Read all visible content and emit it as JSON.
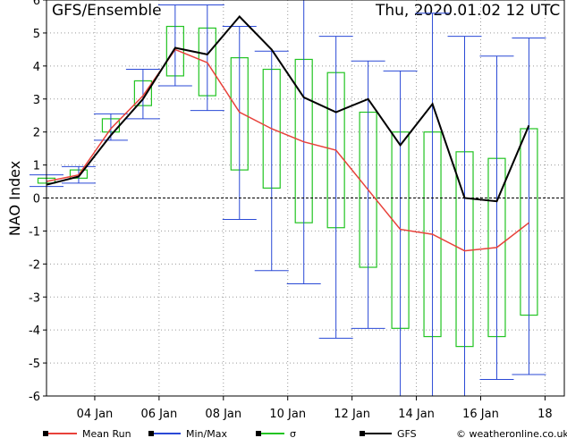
{
  "header": {
    "title": "GFS/Ensemble",
    "timestamp": "Thu, 2020.01.02   12 UTC"
  },
  "legend": {
    "items": [
      {
        "label": "Mean Run",
        "color": "#e8413a"
      },
      {
        "label": "Min/Max",
        "color": "#2a49d6"
      },
      {
        "label": "σ",
        "color": "#22c422"
      },
      {
        "label": "GFS",
        "color": "#000000"
      }
    ],
    "source": "© weatheronline.co.uk"
  },
  "chart_data": {
    "type": "line",
    "ylabel": "NAO Index",
    "xlabel": "",
    "ylim": [
      -6,
      6
    ],
    "yticks": [
      -6,
      -5,
      -4,
      -3,
      -2,
      -1,
      0,
      1,
      2,
      3,
      4,
      5,
      6
    ],
    "xlim": [
      2.5,
      18.6
    ],
    "xticks": [
      {
        "day": 4,
        "label": "04 Jan"
      },
      {
        "day": 6,
        "label": "06 Jan"
      },
      {
        "day": 8,
        "label": "08 Jan"
      },
      {
        "day": 10,
        "label": "10 Jan"
      },
      {
        "day": 12,
        "label": "12 Jan"
      },
      {
        "day": 14,
        "label": "14 Jan"
      },
      {
        "day": 16,
        "label": "16 Jan"
      },
      {
        "day": 18,
        "label": "18"
      }
    ],
    "grid": true,
    "x": [
      2.5,
      3.5,
      4.5,
      5.5,
      6.5,
      7.5,
      8.5,
      9.5,
      10.5,
      11.5,
      12.5,
      13.5,
      14.5,
      15.5,
      16.5,
      17.5,
      18.5
    ],
    "series": [
      {
        "name": "Mean Run",
        "values": [
          0.5,
          0.7,
          2.1,
          3.1,
          4.5,
          4.1,
          2.6,
          2.1,
          1.7,
          1.45,
          0.25,
          -0.95,
          -1.1,
          -1.6,
          -1.5,
          -0.75,
          null
        ]
      },
      {
        "name": "GFS",
        "values": [
          0.4,
          0.65,
          1.9,
          3.0,
          4.55,
          4.35,
          5.5,
          4.5,
          3.05,
          2.6,
          3.0,
          1.6,
          2.85,
          0.0,
          -0.1,
          2.2,
          null
        ]
      },
      {
        "name": "Min/Max",
        "min": [
          0.35,
          0.45,
          1.75,
          2.4,
          3.4,
          2.65,
          -0.65,
          -2.2,
          -2.6,
          -4.25,
          -3.95,
          -6.0,
          -6.0,
          -6.0,
          -5.5,
          -5.35,
          null
        ],
        "max": [
          0.7,
          0.95,
          2.55,
          3.9,
          5.85,
          5.85,
          5.2,
          4.45,
          6.0,
          4.9,
          4.15,
          3.85,
          5.6,
          4.9,
          4.3,
          4.85,
          null
        ]
      },
      {
        "name": "σ",
        "low": [
          0.45,
          0.6,
          2.0,
          2.8,
          3.7,
          3.1,
          0.85,
          0.3,
          -0.75,
          -0.9,
          -2.1,
          -3.95,
          -4.2,
          -4.5,
          -4.2,
          -3.55,
          null
        ],
        "high": [
          0.6,
          0.85,
          2.4,
          3.55,
          5.2,
          5.15,
          4.25,
          3.9,
          4.2,
          3.8,
          2.6,
          2.0,
          2.0,
          1.4,
          1.2,
          2.1,
          null
        ]
      }
    ]
  }
}
